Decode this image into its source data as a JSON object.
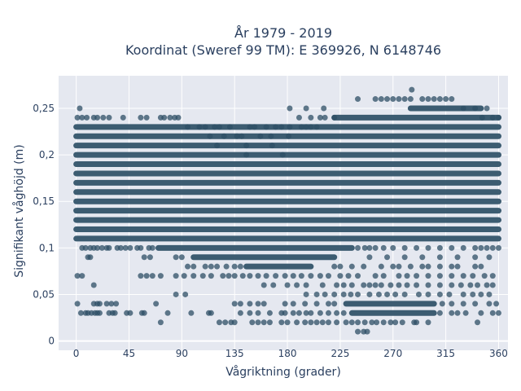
{
  "chart_data": {
    "type": "scatter",
    "title": [
      "År 1979 - 2019",
      "Koordinat (Sweref 99 TM): E 369926, N 6148746"
    ],
    "xlabel": "Vågriktning (grader)",
    "ylabel": "Signifikant våghöjd (m)",
    "xlim": [
      -15,
      368
    ],
    "ylim": [
      -0.01,
      0.285
    ],
    "x_ticks": [
      0,
      45,
      90,
      135,
      180,
      225,
      270,
      315,
      360
    ],
    "x_tick_labels": [
      "0",
      "45",
      "90",
      "135",
      "180",
      "225",
      "270",
      "315",
      "360"
    ],
    "y_ticks": [
      0,
      0.05,
      0.1,
      0.15,
      0.2,
      0.25
    ],
    "y_tick_labels": [
      "0",
      "0,05",
      "0,1",
      "0,15",
      "0,2",
      "0,25"
    ],
    "grid": true,
    "marker_color": "#2e4f66",
    "background_color": "#e5e8f0",
    "dense_bands": [
      {
        "y": 0.11,
        "x_range": [
          0,
          360
        ]
      },
      {
        "y": 0.12,
        "x_range": [
          0,
          360
        ]
      },
      {
        "y": 0.13,
        "x_range": [
          0,
          360
        ]
      },
      {
        "y": 0.14,
        "x_range": [
          0,
          360
        ]
      },
      {
        "y": 0.15,
        "x_range": [
          0,
          360
        ]
      },
      {
        "y": 0.16,
        "x_range": [
          0,
          360
        ]
      },
      {
        "y": 0.17,
        "x_range": [
          0,
          360
        ]
      },
      {
        "y": 0.18,
        "x_range": [
          0,
          360
        ]
      },
      {
        "y": 0.19,
        "x_range": [
          0,
          360
        ]
      },
      {
        "y": 0.2,
        "x_range": [
          0,
          360
        ]
      },
      {
        "y": 0.21,
        "x_range": [
          0,
          360
        ]
      },
      {
        "y": 0.22,
        "x_range": [
          0,
          360
        ]
      },
      {
        "y": 0.23,
        "x_range": [
          0,
          360
        ]
      },
      {
        "y": 0.24,
        "x_range": [
          220,
          360
        ]
      },
      {
        "y": 0.25,
        "x_range": [
          285,
          345
        ]
      },
      {
        "y": 0.1,
        "x_range": [
          70,
          235
        ]
      },
      {
        "y": 0.09,
        "x_range": [
          100,
          220
        ]
      },
      {
        "y": 0.08,
        "x_range": [
          145,
          200
        ]
      },
      {
        "y": 0.04,
        "x_range": [
          230,
          305
        ]
      },
      {
        "y": 0.03,
        "x_range": [
          235,
          305
        ]
      }
    ],
    "points": [
      [
        3,
        0.25
      ],
      [
        1,
        0.24
      ],
      [
        5,
        0.24
      ],
      [
        9,
        0.24
      ],
      [
        15,
        0.24
      ],
      [
        18,
        0.24
      ],
      [
        23,
        0.24
      ],
      [
        28,
        0.24
      ],
      [
        40,
        0.24
      ],
      [
        55,
        0.24
      ],
      [
        60,
        0.24
      ],
      [
        72,
        0.24
      ],
      [
        75,
        0.24
      ],
      [
        80,
        0.24
      ],
      [
        84,
        0.24
      ],
      [
        87,
        0.24
      ],
      [
        95,
        0.23
      ],
      [
        105,
        0.23
      ],
      [
        110,
        0.23
      ],
      [
        118,
        0.23
      ],
      [
        122,
        0.23
      ],
      [
        131,
        0.23
      ],
      [
        148,
        0.23
      ],
      [
        152,
        0.23
      ],
      [
        162,
        0.23
      ],
      [
        170,
        0.23
      ],
      [
        175,
        0.23
      ],
      [
        182,
        0.23
      ],
      [
        192,
        0.23
      ],
      [
        196,
        0.23
      ],
      [
        200,
        0.23
      ],
      [
        205,
        0.23
      ],
      [
        190,
        0.24
      ],
      [
        200,
        0.24
      ],
      [
        208,
        0.24
      ],
      [
        212,
        0.24
      ],
      [
        220,
        0.24
      ],
      [
        196,
        0.25
      ],
      [
        211,
        0.25
      ],
      [
        182,
        0.25
      ],
      [
        240,
        0.26
      ],
      [
        255,
        0.26
      ],
      [
        260,
        0.26
      ],
      [
        265,
        0.26
      ],
      [
        270,
        0.26
      ],
      [
        275,
        0.26
      ],
      [
        280,
        0.26
      ],
      [
        285,
        0.26
      ],
      [
        295,
        0.26
      ],
      [
        300,
        0.26
      ],
      [
        305,
        0.26
      ],
      [
        310,
        0.26
      ],
      [
        315,
        0.26
      ],
      [
        320,
        0.26
      ],
      [
        286,
        0.27
      ],
      [
        330,
        0.25
      ],
      [
        340,
        0.25
      ],
      [
        350,
        0.25
      ],
      [
        355,
        0.24
      ],
      [
        360,
        0.24
      ],
      [
        346,
        0.24
      ],
      [
        114,
        0.22
      ],
      [
        126,
        0.22
      ],
      [
        137,
        0.22
      ],
      [
        141,
        0.22
      ],
      [
        157,
        0.22
      ],
      [
        166,
        0.22
      ],
      [
        181,
        0.22
      ],
      [
        120,
        0.21
      ],
      [
        145,
        0.21
      ],
      [
        167,
        0.21
      ],
      [
        145,
        0.2
      ],
      [
        176,
        0.2
      ],
      [
        5,
        0.1
      ],
      [
        8,
        0.1
      ],
      [
        12,
        0.1
      ],
      [
        15,
        0.1
      ],
      [
        18,
        0.1
      ],
      [
        22,
        0.1
      ],
      [
        26,
        0.1
      ],
      [
        28,
        0.1
      ],
      [
        35,
        0.1
      ],
      [
        38,
        0.1
      ],
      [
        42,
        0.1
      ],
      [
        46,
        0.1
      ],
      [
        52,
        0.1
      ],
      [
        55,
        0.1
      ],
      [
        62,
        0.1
      ],
      [
        65,
        0.1
      ],
      [
        10,
        0.09
      ],
      [
        12,
        0.09
      ],
      [
        58,
        0.09
      ],
      [
        63,
        0.09
      ],
      [
        85,
        0.09
      ],
      [
        90,
        0.09
      ],
      [
        240,
        0.1
      ],
      [
        246,
        0.1
      ],
      [
        250,
        0.1
      ],
      [
        255,
        0.1
      ],
      [
        262,
        0.1
      ],
      [
        270,
        0.1
      ],
      [
        280,
        0.1
      ],
      [
        290,
        0.1
      ],
      [
        300,
        0.1
      ],
      [
        310,
        0.1
      ],
      [
        320,
        0.1
      ],
      [
        330,
        0.1
      ],
      [
        340,
        0.1
      ],
      [
        345,
        0.1
      ],
      [
        350,
        0.1
      ],
      [
        355,
        0.1
      ],
      [
        360,
        0.1
      ],
      [
        250,
        0.09
      ],
      [
        265,
        0.09
      ],
      [
        280,
        0.09
      ],
      [
        295,
        0.09
      ],
      [
        310,
        0.09
      ],
      [
        325,
        0.09
      ],
      [
        340,
        0.09
      ],
      [
        352,
        0.09
      ],
      [
        95,
        0.08
      ],
      [
        100,
        0.08
      ],
      [
        110,
        0.08
      ],
      [
        115,
        0.08
      ],
      [
        120,
        0.08
      ],
      [
        128,
        0.08
      ],
      [
        135,
        0.08
      ],
      [
        140,
        0.08
      ],
      [
        220,
        0.08
      ],
      [
        225,
        0.08
      ],
      [
        235,
        0.08
      ],
      [
        245,
        0.08
      ],
      [
        260,
        0.08
      ],
      [
        270,
        0.08
      ],
      [
        275,
        0.08
      ],
      [
        285,
        0.08
      ],
      [
        295,
        0.08
      ],
      [
        300,
        0.08
      ],
      [
        310,
        0.08
      ],
      [
        320,
        0.08
      ],
      [
        325,
        0.08
      ],
      [
        340,
        0.08
      ],
      [
        345,
        0.08
      ],
      [
        1,
        0.07
      ],
      [
        5,
        0.07
      ],
      [
        55,
        0.07
      ],
      [
        60,
        0.07
      ],
      [
        65,
        0.07
      ],
      [
        72,
        0.07
      ],
      [
        85,
        0.07
      ],
      [
        92,
        0.07
      ],
      [
        100,
        0.07
      ],
      [
        108,
        0.07
      ],
      [
        115,
        0.07
      ],
      [
        125,
        0.07
      ],
      [
        130,
        0.07
      ],
      [
        135,
        0.07
      ],
      [
        142,
        0.07
      ],
      [
        148,
        0.07
      ],
      [
        155,
        0.07
      ],
      [
        162,
        0.07
      ],
      [
        170,
        0.07
      ],
      [
        178,
        0.07
      ],
      [
        185,
        0.07
      ],
      [
        192,
        0.07
      ],
      [
        200,
        0.07
      ],
      [
        208,
        0.07
      ],
      [
        215,
        0.07
      ],
      [
        225,
        0.07
      ],
      [
        232,
        0.07
      ],
      [
        240,
        0.07
      ],
      [
        255,
        0.07
      ],
      [
        262,
        0.07
      ],
      [
        275,
        0.07
      ],
      [
        282,
        0.07
      ],
      [
        290,
        0.07
      ],
      [
        300,
        0.07
      ],
      [
        310,
        0.07
      ],
      [
        320,
        0.07
      ],
      [
        330,
        0.07
      ],
      [
        338,
        0.07
      ],
      [
        348,
        0.07
      ],
      [
        355,
        0.07
      ],
      [
        15,
        0.06
      ],
      [
        160,
        0.06
      ],
      [
        168,
        0.06
      ],
      [
        180,
        0.06
      ],
      [
        188,
        0.06
      ],
      [
        196,
        0.06
      ],
      [
        210,
        0.06
      ],
      [
        222,
        0.06
      ],
      [
        228,
        0.06
      ],
      [
        235,
        0.06
      ],
      [
        245,
        0.06
      ],
      [
        250,
        0.06
      ],
      [
        255,
        0.06
      ],
      [
        260,
        0.06
      ],
      [
        268,
        0.06
      ],
      [
        275,
        0.06
      ],
      [
        282,
        0.06
      ],
      [
        290,
        0.06
      ],
      [
        300,
        0.06
      ],
      [
        310,
        0.06
      ],
      [
        320,
        0.06
      ],
      [
        328,
        0.06
      ],
      [
        336,
        0.06
      ],
      [
        342,
        0.06
      ],
      [
        350,
        0.06
      ],
      [
        355,
        0.06
      ],
      [
        85,
        0.05
      ],
      [
        93,
        0.05
      ],
      [
        196,
        0.05
      ],
      [
        205,
        0.05
      ],
      [
        212,
        0.05
      ],
      [
        220,
        0.05
      ],
      [
        228,
        0.05
      ],
      [
        234,
        0.05
      ],
      [
        240,
        0.05
      ],
      [
        250,
        0.05
      ],
      [
        258,
        0.05
      ],
      [
        265,
        0.05
      ],
      [
        272,
        0.05
      ],
      [
        280,
        0.05
      ],
      [
        292,
        0.05
      ],
      [
        300,
        0.05
      ],
      [
        310,
        0.05
      ],
      [
        318,
        0.05
      ],
      [
        330,
        0.05
      ],
      [
        338,
        0.05
      ],
      [
        345,
        0.05
      ],
      [
        352,
        0.05
      ],
      [
        1,
        0.04
      ],
      [
        15,
        0.04
      ],
      [
        18,
        0.04
      ],
      [
        20,
        0.04
      ],
      [
        26,
        0.04
      ],
      [
        30,
        0.04
      ],
      [
        34,
        0.04
      ],
      [
        68,
        0.04
      ],
      [
        135,
        0.04
      ],
      [
        140,
        0.04
      ],
      [
        148,
        0.04
      ],
      [
        155,
        0.04
      ],
      [
        160,
        0.04
      ],
      [
        178,
        0.04
      ],
      [
        185,
        0.04
      ],
      [
        195,
        0.04
      ],
      [
        205,
        0.04
      ],
      [
        215,
        0.04
      ],
      [
        220,
        0.04
      ],
      [
        312,
        0.04
      ],
      [
        320,
        0.04
      ],
      [
        330,
        0.04
      ],
      [
        340,
        0.04
      ],
      [
        352,
        0.04
      ],
      [
        358,
        0.04
      ],
      [
        4,
        0.03
      ],
      [
        8,
        0.03
      ],
      [
        10,
        0.03
      ],
      [
        13,
        0.03
      ],
      [
        16,
        0.03
      ],
      [
        18,
        0.03
      ],
      [
        20,
        0.03
      ],
      [
        28,
        0.03
      ],
      [
        31,
        0.03
      ],
      [
        33,
        0.03
      ],
      [
        43,
        0.03
      ],
      [
        46,
        0.03
      ],
      [
        56,
        0.03
      ],
      [
        58,
        0.03
      ],
      [
        78,
        0.03
      ],
      [
        98,
        0.03
      ],
      [
        113,
        0.03
      ],
      [
        115,
        0.03
      ],
      [
        140,
        0.03
      ],
      [
        148,
        0.03
      ],
      [
        155,
        0.03
      ],
      [
        165,
        0.03
      ],
      [
        175,
        0.03
      ],
      [
        178,
        0.03
      ],
      [
        185,
        0.03
      ],
      [
        190,
        0.03
      ],
      [
        196,
        0.03
      ],
      [
        200,
        0.03
      ],
      [
        208,
        0.03
      ],
      [
        215,
        0.03
      ],
      [
        222,
        0.03
      ],
      [
        228,
        0.03
      ],
      [
        310,
        0.03
      ],
      [
        320,
        0.03
      ],
      [
        325,
        0.03
      ],
      [
        332,
        0.03
      ],
      [
        345,
        0.03
      ],
      [
        355,
        0.03
      ],
      [
        360,
        0.03
      ],
      [
        72,
        0.02
      ],
      [
        122,
        0.02
      ],
      [
        127,
        0.02
      ],
      [
        132,
        0.02
      ],
      [
        135,
        0.02
      ],
      [
        150,
        0.02
      ],
      [
        155,
        0.02
      ],
      [
        160,
        0.02
      ],
      [
        165,
        0.02
      ],
      [
        175,
        0.02
      ],
      [
        180,
        0.02
      ],
      [
        188,
        0.02
      ],
      [
        195,
        0.02
      ],
      [
        200,
        0.02
      ],
      [
        205,
        0.02
      ],
      [
        210,
        0.02
      ],
      [
        215,
        0.02
      ],
      [
        222,
        0.02
      ],
      [
        230,
        0.02
      ],
      [
        235,
        0.02
      ],
      [
        240,
        0.02
      ],
      [
        246,
        0.02
      ],
      [
        252,
        0.02
      ],
      [
        256,
        0.02
      ],
      [
        262,
        0.02
      ],
      [
        268,
        0.02
      ],
      [
        272,
        0.02
      ],
      [
        278,
        0.02
      ],
      [
        288,
        0.02
      ],
      [
        290,
        0.02
      ],
      [
        300,
        0.02
      ],
      [
        342,
        0.02
      ],
      [
        240,
        0.01
      ],
      [
        245,
        0.01
      ],
      [
        248,
        0.01
      ]
    ]
  }
}
